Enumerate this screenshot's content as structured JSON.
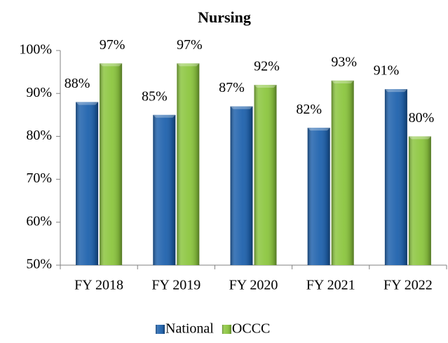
{
  "chart_data": {
    "type": "bar",
    "title": "Nursing",
    "categories": [
      "FY 2018",
      "FY 2019",
      "FY 2020",
      "FY 2021",
      "FY 2022"
    ],
    "series": [
      {
        "name": "National",
        "color": "#1f62ad",
        "values": [
          88,
          85,
          87,
          82,
          91
        ],
        "value_labels": [
          "88%",
          "85%",
          "87%",
          "82%",
          "91%"
        ]
      },
      {
        "name": "OCCC",
        "color": "#8cc63f",
        "values": [
          97,
          97,
          92,
          93,
          80
        ],
        "value_labels": [
          "97%",
          "97%",
          "92%",
          "93%",
          "80%"
        ]
      }
    ],
    "ylim": [
      50,
      100
    ],
    "yticks": [
      {
        "value": 50,
        "label": "50%"
      },
      {
        "value": 60,
        "label": "60%"
      },
      {
        "value": 70,
        "label": "70%"
      },
      {
        "value": 80,
        "label": "80%"
      },
      {
        "value": 90,
        "label": "90%"
      },
      {
        "value": 100,
        "label": "100%"
      }
    ],
    "grid": false,
    "legend": "bottom"
  }
}
